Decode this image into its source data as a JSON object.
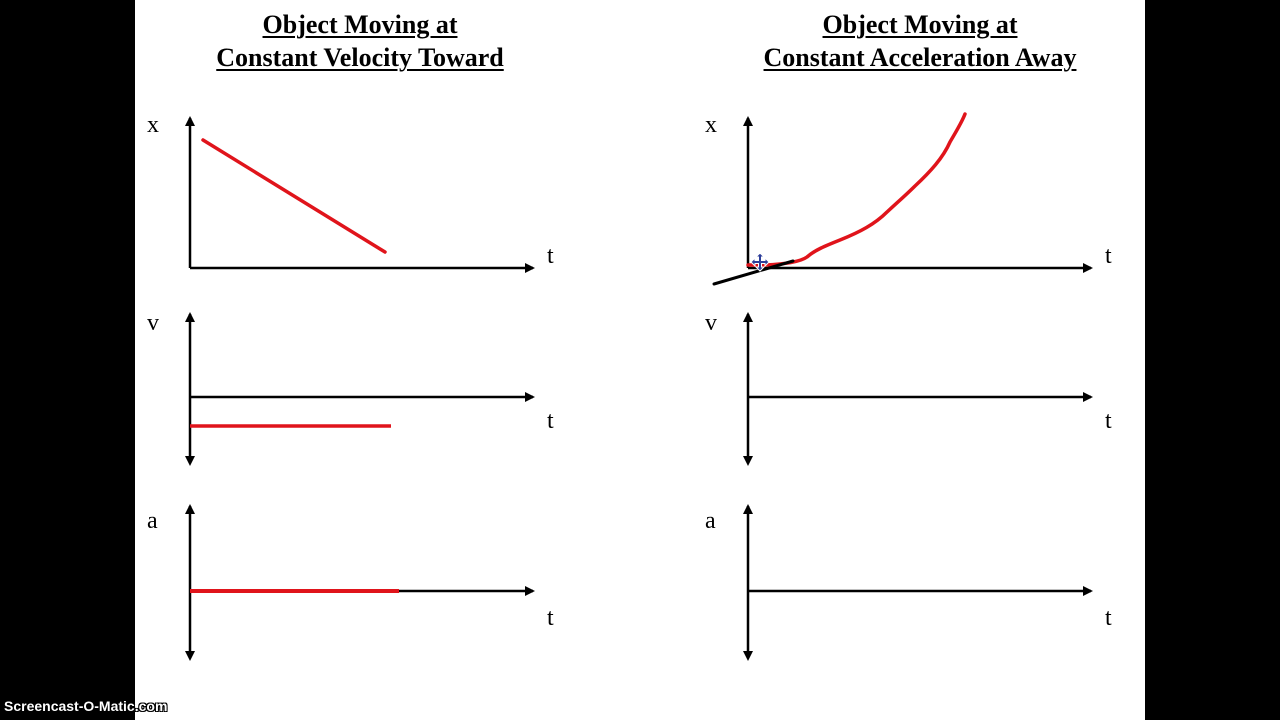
{
  "panels": {
    "left": {
      "title_line1": "Object Moving at",
      "title_line2": "Constant Velocity Toward",
      "graphs": {
        "position": {
          "y_label": "x",
          "x_label": "t"
        },
        "velocity": {
          "y_label": "v",
          "x_label": "t"
        },
        "acceleration": {
          "y_label": "a",
          "x_label": "t"
        }
      }
    },
    "right": {
      "title_line1": "Object Moving at",
      "title_line2": "Constant Acceleration Away",
      "graphs": {
        "position": {
          "y_label": "x",
          "x_label": "t"
        },
        "velocity": {
          "y_label": "v",
          "x_label": "t"
        },
        "acceleration": {
          "y_label": "a",
          "x_label": "t"
        }
      }
    }
  },
  "colors": {
    "axis": "#000000",
    "drawing": "#e0141b",
    "tangent": "#000000",
    "page": "#ffffff",
    "border": "#000000"
  },
  "cursor_icon": "move-cursor-icon",
  "watermark": "Screencast-O-Matic.com"
}
